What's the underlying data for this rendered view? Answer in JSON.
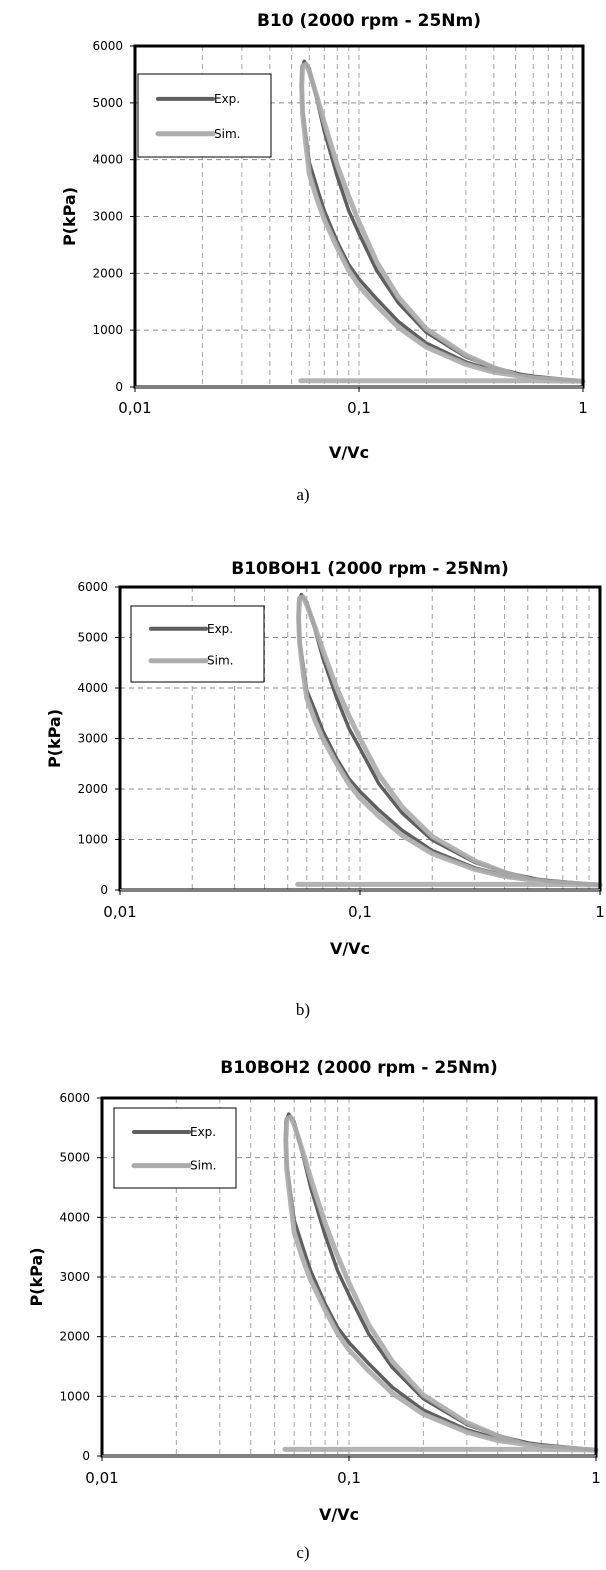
{
  "chart_data": [
    {
      "type": "line",
      "title": "B10 (2000 rpm - 25Nm)",
      "xlabel": "V/Vc",
      "ylabel": "P(kPa)",
      "xscale": "log",
      "xlim": [
        0.01,
        1
      ],
      "ylim": [
        0,
        6000
      ],
      "xticks": [
        "0,01",
        "0,1",
        "1"
      ],
      "yticks": [
        "0",
        "1000",
        "2000",
        "3000",
        "4000",
        "5000",
        "6000"
      ],
      "grid": true,
      "legend": "top-left",
      "caption": "a)",
      "series": [
        {
          "name": "Exp.",
          "color": "#5f5f5f",
          "x": [
            1.0,
            0.6,
            0.4,
            0.3,
            0.2,
            0.15,
            0.12,
            0.1,
            0.09,
            0.08,
            0.07,
            0.065,
            0.06,
            0.058,
            0.056,
            0.0555,
            0.0555,
            0.057,
            0.06,
            0.065,
            0.07,
            0.08,
            0.09,
            0.1,
            0.12,
            0.15,
            0.2,
            0.3,
            0.4,
            0.6,
            1.0
          ],
          "y": [
            100,
            190,
            290,
            440,
            770,
            1150,
            1550,
            1900,
            2150,
            2550,
            3100,
            3500,
            3950,
            4400,
            4900,
            5300,
            5600,
            5730,
            5600,
            5050,
            4500,
            3700,
            3100,
            2700,
            2050,
            1480,
            960,
            530,
            340,
            170,
            100
          ]
        },
        {
          "name": "Sim.",
          "color": "#acacac",
          "x": [
            0.055,
            0.1,
            0.3,
            0.6,
            1.0,
            0.6,
            0.4,
            0.3,
            0.2,
            0.15,
            0.12,
            0.1,
            0.09,
            0.08,
            0.07,
            0.065,
            0.06,
            0.058,
            0.056,
            0.0555,
            0.056,
            0.058,
            0.06,
            0.065,
            0.07,
            0.08,
            0.09,
            0.1,
            0.12,
            0.15,
            0.2,
            0.3,
            0.4,
            0.55
          ],
          "y": [
            110,
            110,
            110,
            110,
            100,
            160,
            260,
            400,
            700,
            1050,
            1430,
            1780,
            2050,
            2450,
            2950,
            3300,
            3750,
            4250,
            4800,
            5300,
            5650,
            5680,
            5550,
            5100,
            4650,
            3900,
            3350,
            2900,
            2200,
            1580,
            1020,
            560,
            340,
            160
          ]
        }
      ]
    },
    {
      "type": "line",
      "title": "B10BOH1 (2000 rpm - 25Nm)",
      "xlabel": "V/Vc",
      "ylabel": "P(kPa)",
      "xscale": "log",
      "xlim": [
        0.01,
        1
      ],
      "ylim": [
        0,
        6000
      ],
      "xticks": [
        "0,01",
        "0,1",
        "1"
      ],
      "yticks": [
        "0",
        "1000",
        "2000",
        "3000",
        "4000",
        "5000",
        "6000"
      ],
      "grid": true,
      "legend": "top-left",
      "caption": "b)",
      "series": [
        {
          "name": "Exp.",
          "color": "#5f5f5f",
          "x": [
            1.0,
            0.6,
            0.4,
            0.3,
            0.2,
            0.15,
            0.12,
            0.1,
            0.09,
            0.08,
            0.07,
            0.065,
            0.06,
            0.058,
            0.056,
            0.0555,
            0.0555,
            0.057,
            0.06,
            0.065,
            0.07,
            0.08,
            0.09,
            0.1,
            0.12,
            0.15,
            0.2,
            0.3,
            0.4,
            0.6,
            1.0
          ],
          "y": [
            100,
            190,
            290,
            440,
            780,
            1180,
            1580,
            1950,
            2200,
            2600,
            3150,
            3550,
            3950,
            4450,
            4950,
            5350,
            5700,
            5850,
            5700,
            5150,
            4600,
            3800,
            3200,
            2800,
            2100,
            1520,
            990,
            550,
            350,
            175,
            100
          ]
        },
        {
          "name": "Sim.",
          "color": "#acacac",
          "x": [
            0.055,
            0.1,
            0.3,
            0.6,
            1.0,
            0.6,
            0.4,
            0.3,
            0.2,
            0.15,
            0.12,
            0.1,
            0.09,
            0.08,
            0.07,
            0.065,
            0.06,
            0.058,
            0.056,
            0.0555,
            0.056,
            0.058,
            0.06,
            0.065,
            0.07,
            0.08,
            0.09,
            0.1,
            0.12,
            0.15,
            0.2,
            0.3,
            0.4,
            0.55
          ],
          "y": [
            110,
            110,
            110,
            110,
            100,
            165,
            270,
            410,
            720,
            1080,
            1460,
            1820,
            2100,
            2500,
            3000,
            3350,
            3800,
            4300,
            4900,
            5400,
            5780,
            5800,
            5650,
            5200,
            4750,
            4000,
            3450,
            3000,
            2280,
            1640,
            1060,
            580,
            350,
            165
          ]
        }
      ]
    },
    {
      "type": "line",
      "title": "B10BOH2 (2000 rpm - 25Nm)",
      "xlabel": "V/Vc",
      "ylabel": "P(kPa)",
      "xscale": "log",
      "xlim": [
        0.01,
        1
      ],
      "ylim": [
        0,
        6000
      ],
      "xticks": [
        "0,01",
        "0,1",
        "1"
      ],
      "yticks": [
        "0",
        "1000",
        "2000",
        "3000",
        "4000",
        "5000",
        "6000"
      ],
      "grid": true,
      "legend": "top-left",
      "caption": "c)",
      "series": [
        {
          "name": "Exp.",
          "color": "#5f5f5f",
          "x": [
            1.0,
            0.6,
            0.4,
            0.3,
            0.2,
            0.15,
            0.12,
            0.1,
            0.09,
            0.08,
            0.07,
            0.065,
            0.06,
            0.058,
            0.056,
            0.0555,
            0.0555,
            0.057,
            0.06,
            0.065,
            0.07,
            0.08,
            0.09,
            0.1,
            0.12,
            0.15,
            0.2,
            0.3,
            0.4,
            0.6,
            1.0
          ],
          "y": [
            100,
            190,
            290,
            440,
            770,
            1150,
            1550,
            1900,
            2150,
            2550,
            3100,
            3500,
            3950,
            4400,
            4900,
            5300,
            5600,
            5730,
            5600,
            5050,
            4500,
            3700,
            3100,
            2700,
            2050,
            1480,
            960,
            530,
            340,
            170,
            100
          ]
        },
        {
          "name": "Sim.",
          "color": "#acacac",
          "x": [
            0.055,
            0.1,
            0.3,
            0.6,
            1.0,
            0.6,
            0.4,
            0.3,
            0.2,
            0.15,
            0.12,
            0.1,
            0.09,
            0.08,
            0.07,
            0.065,
            0.06,
            0.058,
            0.056,
            0.0555,
            0.056,
            0.058,
            0.06,
            0.065,
            0.07,
            0.08,
            0.09,
            0.1,
            0.12,
            0.15,
            0.2,
            0.3,
            0.4,
            0.55
          ],
          "y": [
            110,
            110,
            110,
            110,
            100,
            160,
            260,
            400,
            700,
            1050,
            1430,
            1780,
            2050,
            2450,
            2950,
            3300,
            3750,
            4250,
            4800,
            5300,
            5650,
            5680,
            5550,
            5100,
            4650,
            3900,
            3350,
            2900,
            2200,
            1580,
            1020,
            560,
            340,
            160
          ]
        }
      ]
    }
  ]
}
